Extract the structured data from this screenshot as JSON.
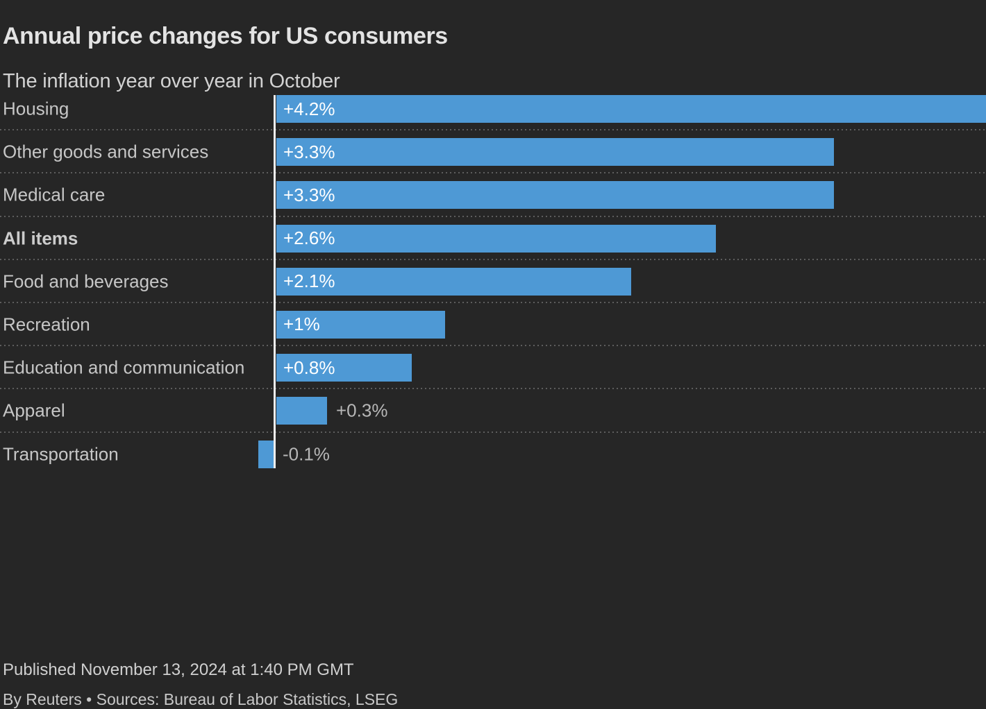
{
  "header": {
    "title": "Annual price changes for US consumers",
    "subtitle": "The inflation year over year in October"
  },
  "chart_data": {
    "type": "bar",
    "orientation": "horizontal",
    "title": "Annual price changes for US consumers",
    "subtitle": "The inflation year over year in October",
    "categories": [
      "Housing",
      "Other goods and services",
      "Medical care",
      "All items",
      "Food and beverages",
      "Recreation",
      "Education and communication",
      "Apparel",
      "Transportation"
    ],
    "values": [
      4.2,
      3.3,
      3.3,
      2.6,
      2.1,
      1,
      0.8,
      0.3,
      -0.1
    ],
    "value_labels": [
      "+4.2%",
      "+3.3%",
      "+3.3%",
      "+2.6%",
      "+2.1%",
      "+1%",
      "+0.8%",
      "+0.3%",
      "-0.1%"
    ],
    "emphasized_category": "All items",
    "unit": "percent",
    "axis_max": 4.2,
    "xlim": [
      0,
      4.2
    ],
    "legend": "none",
    "grid": "dotted-row-separators",
    "bar_color": "#4e99d5",
    "background_color": "#262626",
    "baseline_color": "#eeeeee"
  },
  "footer": {
    "published": "Published November 13, 2024 at 1:40 PM GMT",
    "byline": "By Reuters • Sources: Bureau of Labor Statistics, LSEG"
  }
}
